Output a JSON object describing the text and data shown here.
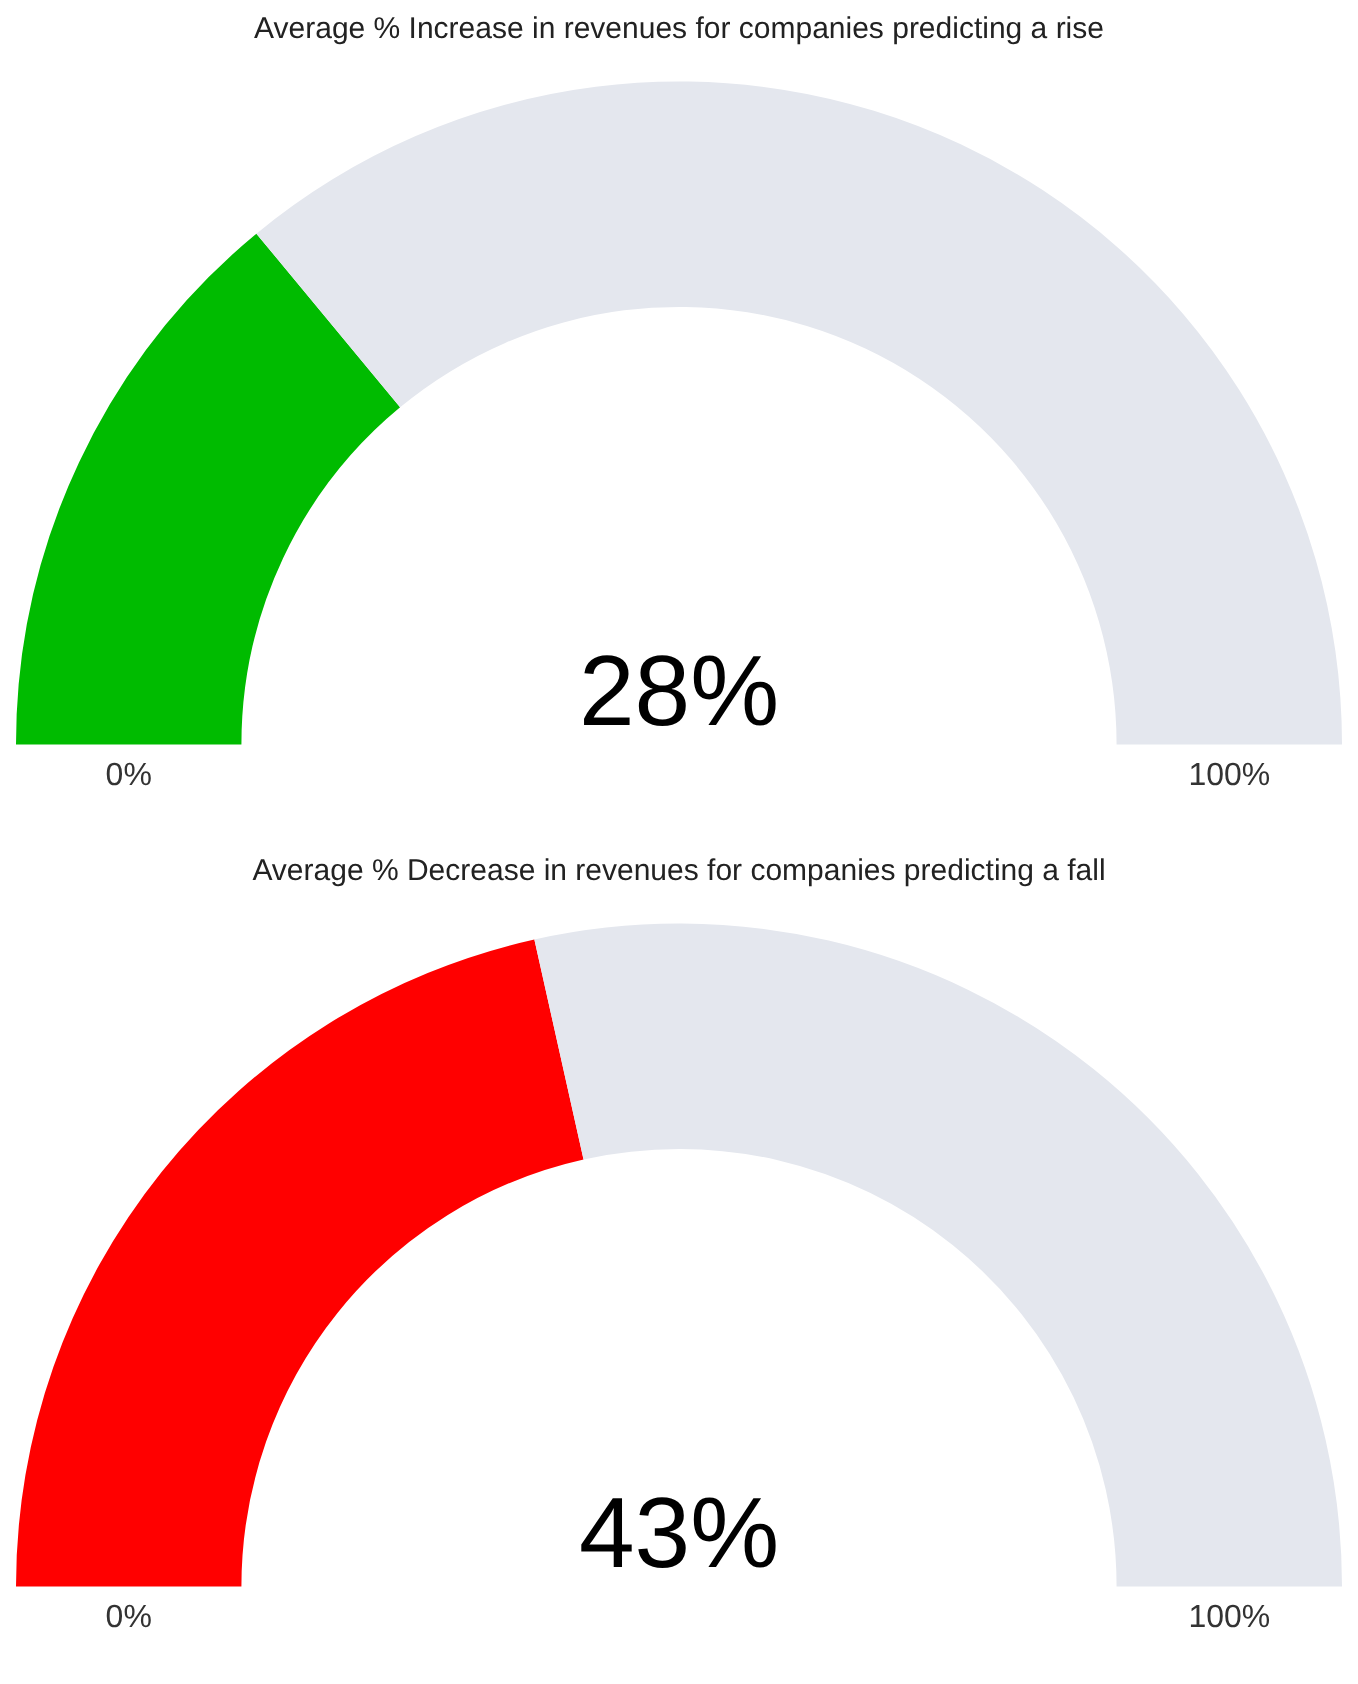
{
  "chart_data": [
    {
      "type": "donut",
      "title": "Average % Increase in revenues for companies predicting a rise",
      "categories": [
        null,
        null
      ],
      "values": [
        28,
        72
      ],
      "colors": [
        "#00bb00",
        "#e4e7ee"
      ],
      "annotations": [
        "28%",
        "0%",
        "100%"
      ]
    },
    {
      "type": "donut",
      "title": "Average % Decrease in revenues for companies predicting a fall",
      "categories": [
        null,
        null
      ],
      "values": [
        43,
        57
      ],
      "colors": [
        "#ff0000",
        "#e4e7ee"
      ],
      "annotations": [
        "43%",
        "0%",
        "100%"
      ]
    }
  ]
}
